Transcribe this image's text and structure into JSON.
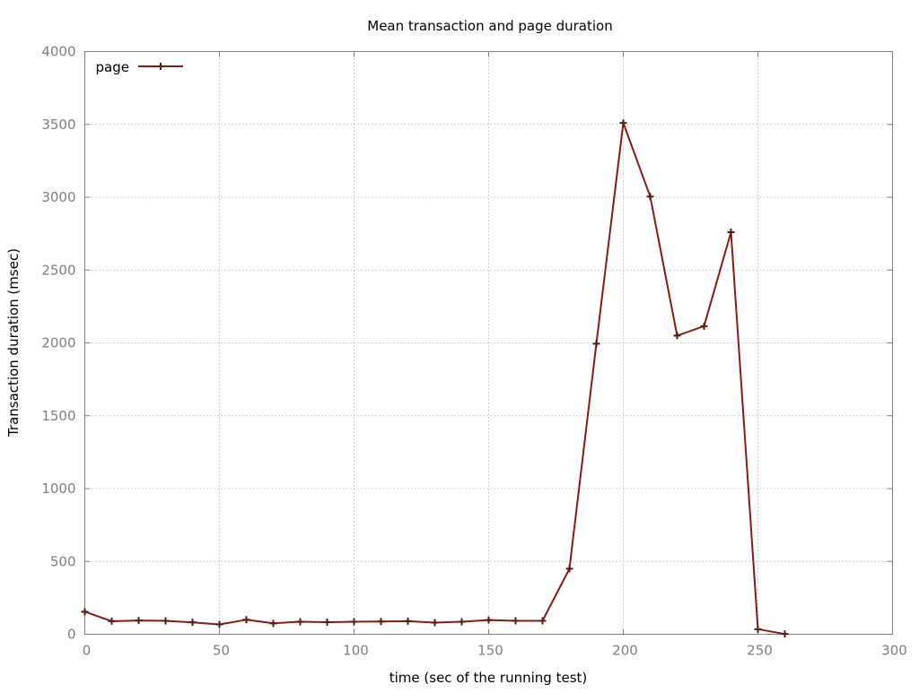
{
  "chart_data": {
    "type": "line",
    "title": "Mean transaction and page duration",
    "xlabel": "time (sec of the running test)",
    "ylabel": "Transaction duration (msec)",
    "xlim": [
      0,
      300
    ],
    "ylim": [
      0,
      4000
    ],
    "x_ticks": [
      0,
      50,
      100,
      150,
      200,
      250,
      300
    ],
    "y_ticks": [
      0,
      500,
      1000,
      1500,
      2000,
      2500,
      3000,
      3500,
      4000
    ],
    "grid": true,
    "legend_position": "top-left",
    "series": [
      {
        "name": "page",
        "color": "#8b1a10",
        "marker": "plus",
        "points": [
          [
            0,
            155
          ],
          [
            10,
            90
          ],
          [
            20,
            95
          ],
          [
            30,
            92
          ],
          [
            40,
            82
          ],
          [
            50,
            68
          ],
          [
            60,
            100
          ],
          [
            70,
            75
          ],
          [
            80,
            86
          ],
          [
            90,
            83
          ],
          [
            100,
            86
          ],
          [
            110,
            88
          ],
          [
            120,
            90
          ],
          [
            130,
            80
          ],
          [
            140,
            86
          ],
          [
            150,
            98
          ],
          [
            160,
            92
          ],
          [
            170,
            92
          ],
          [
            180,
            450
          ],
          [
            190,
            1995
          ],
          [
            200,
            3510
          ],
          [
            210,
            3005
          ],
          [
            220,
            2050
          ],
          [
            230,
            2115
          ],
          [
            240,
            2760
          ],
          [
            250,
            35
          ],
          [
            260,
            2
          ]
        ]
      }
    ]
  }
}
